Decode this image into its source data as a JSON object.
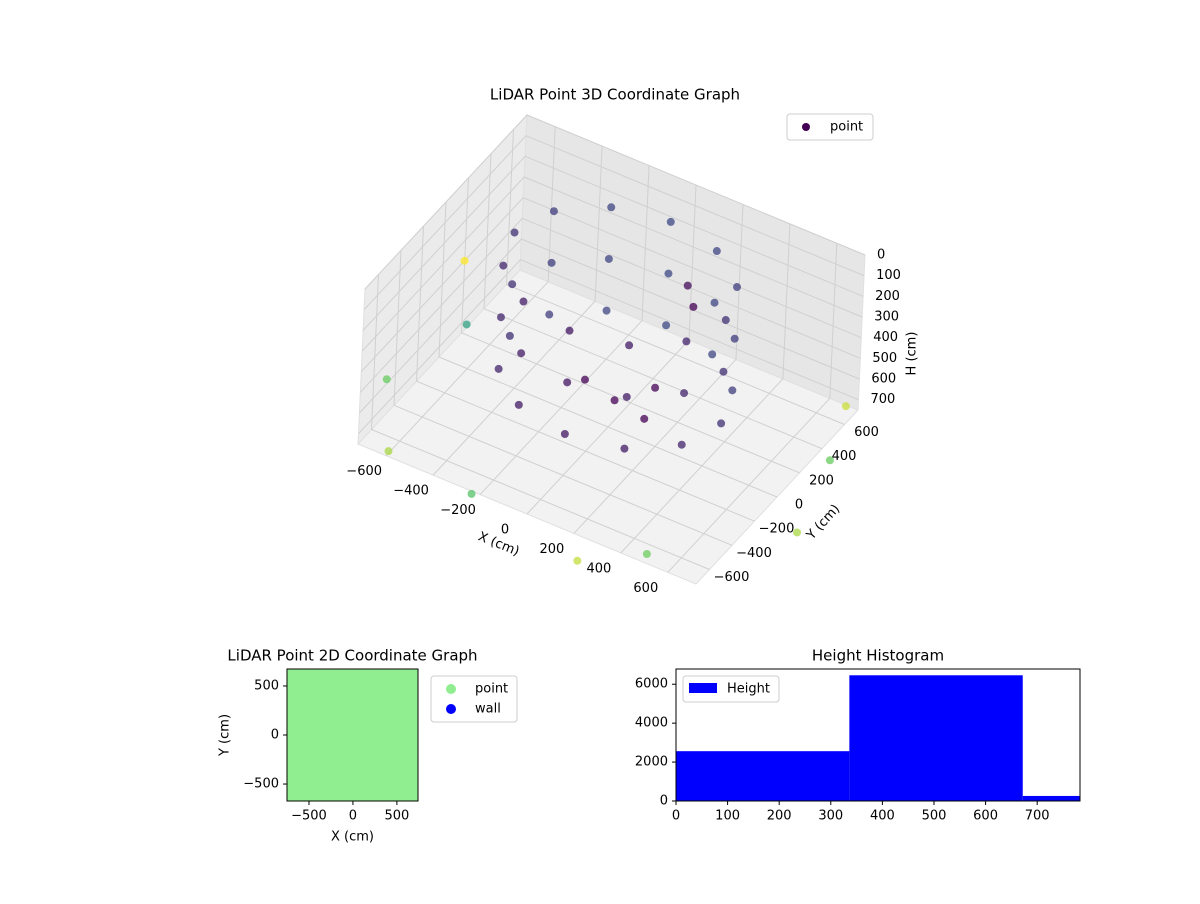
{
  "chart_data": [
    {
      "type": "scatter3d",
      "title": "LiDAR Point 3D Coordinate Graph",
      "xlabel": "X (cm)",
      "ylabel": "Y (cm)",
      "zlabel": "H (cm)",
      "xlim": [
        -720,
        720
      ],
      "ylim": [
        -720,
        720
      ],
      "zlim": [
        0,
        750
      ],
      "z_inverted": true,
      "cmap": "viridis",
      "legend": "upper right",
      "xticks": [
        {
          "value": -600,
          "label": "−600"
        },
        {
          "value": -400,
          "label": "−400"
        },
        {
          "value": -200,
          "label": "−200"
        },
        0,
        200,
        400,
        600
      ],
      "yticks": [
        {
          "value": -600,
          "label": "−600"
        },
        {
          "value": -400,
          "label": "−400"
        },
        {
          "value": -200,
          "label": "−200"
        },
        0,
        200,
        400,
        600
      ],
      "zticks": [
        0,
        100,
        200,
        300,
        400,
        500,
        600,
        700
      ],
      "series": [
        {
          "name": "point",
          "x": [
            450,
            390,
            225,
            0,
            -225,
            -390,
            -450,
            -390,
            -225,
            0,
            225,
            390,
            450,
            390,
            225,
            0,
            -225,
            -390,
            -450,
            -390,
            -225,
            0,
            225,
            390,
            450,
            390,
            225,
            0,
            -225,
            -390,
            -450,
            -390,
            -225,
            0,
            225,
            390,
            -800,
            -700,
            -600,
            900,
            700,
            300,
            -200,
            800,
            -900,
            500,
            0,
            150,
            -150,
            100,
            200,
            150
          ],
          "y": [
            50,
            275,
            440,
            500,
            440,
            275,
            50,
            -175,
            -340,
            -400,
            -340,
            -175,
            50,
            275,
            440,
            500,
            440,
            275,
            50,
            -175,
            -340,
            -400,
            -340,
            -175,
            50,
            275,
            440,
            500,
            440,
            275,
            50,
            -175,
            -340,
            -400,
            -340,
            -175,
            -300,
            200,
            -700,
            -200,
            650,
            -900,
            -800,
            300,
            600,
            -700,
            50,
            0,
            100,
            200,
            300,
            350
          ],
          "z": [
            50,
            50,
            50,
            50,
            50,
            50,
            50,
            50,
            50,
            50,
            50,
            50,
            300,
            300,
            300,
            300,
            300,
            300,
            300,
            300,
            300,
            300,
            300,
            300,
            550,
            550,
            550,
            550,
            550,
            550,
            550,
            550,
            550,
            550,
            550,
            550,
            720,
            700,
            740,
            720,
            700,
            730,
            700,
            710,
            720,
            720,
            650,
            640,
            650,
            630,
            250,
            200
          ]
        }
      ]
    },
    {
      "type": "scatter",
      "title": "LiDAR Point 2D Coordinate Graph",
      "xlabel": "X (cm)",
      "ylabel": "Y (cm)",
      "xlim": [
        -750,
        740
      ],
      "ylim": [
        -673,
        673
      ],
      "legend": "outside right",
      "xticks": [
        {
          "value": -500,
          "label": "−500"
        },
        0,
        500
      ],
      "yticks": [
        {
          "value": -500,
          "label": "−500"
        },
        0,
        500
      ],
      "series": [
        {
          "name": "point",
          "color": "#90ee90",
          "x": [
            -600,
            -300,
            0,
            300,
            600,
            -600,
            -300,
            0,
            300,
            600,
            -600,
            -300,
            0,
            300,
            600,
            -600,
            -300,
            0,
            300,
            600,
            -600,
            -300,
            0,
            300,
            600
          ],
          "y": [
            600,
            600,
            600,
            600,
            600,
            300,
            300,
            300,
            300,
            300,
            0,
            0,
            0,
            0,
            0,
            -300,
            -300,
            -300,
            -300,
            -300,
            -600,
            -600,
            -600,
            -600,
            -600
          ]
        },
        {
          "name": "wall",
          "color": "#0000ff",
          "x": [],
          "y": []
        }
      ]
    },
    {
      "type": "histogram",
      "title": "Height Histogram",
      "legend": "upper left",
      "bins": [
        0,
        336,
        672,
        783
      ],
      "xlim": [
        0,
        783
      ],
      "ylim": [
        0,
        6783
      ],
      "xticks": [
        0,
        100,
        200,
        300,
        400,
        500,
        600,
        700
      ],
      "yticks": [
        0,
        2000,
        4000,
        6000
      ],
      "series": [
        {
          "name": "Height",
          "color": "#0000ff",
          "values": [
            2560,
            6460,
            260
          ]
        }
      ]
    }
  ]
}
